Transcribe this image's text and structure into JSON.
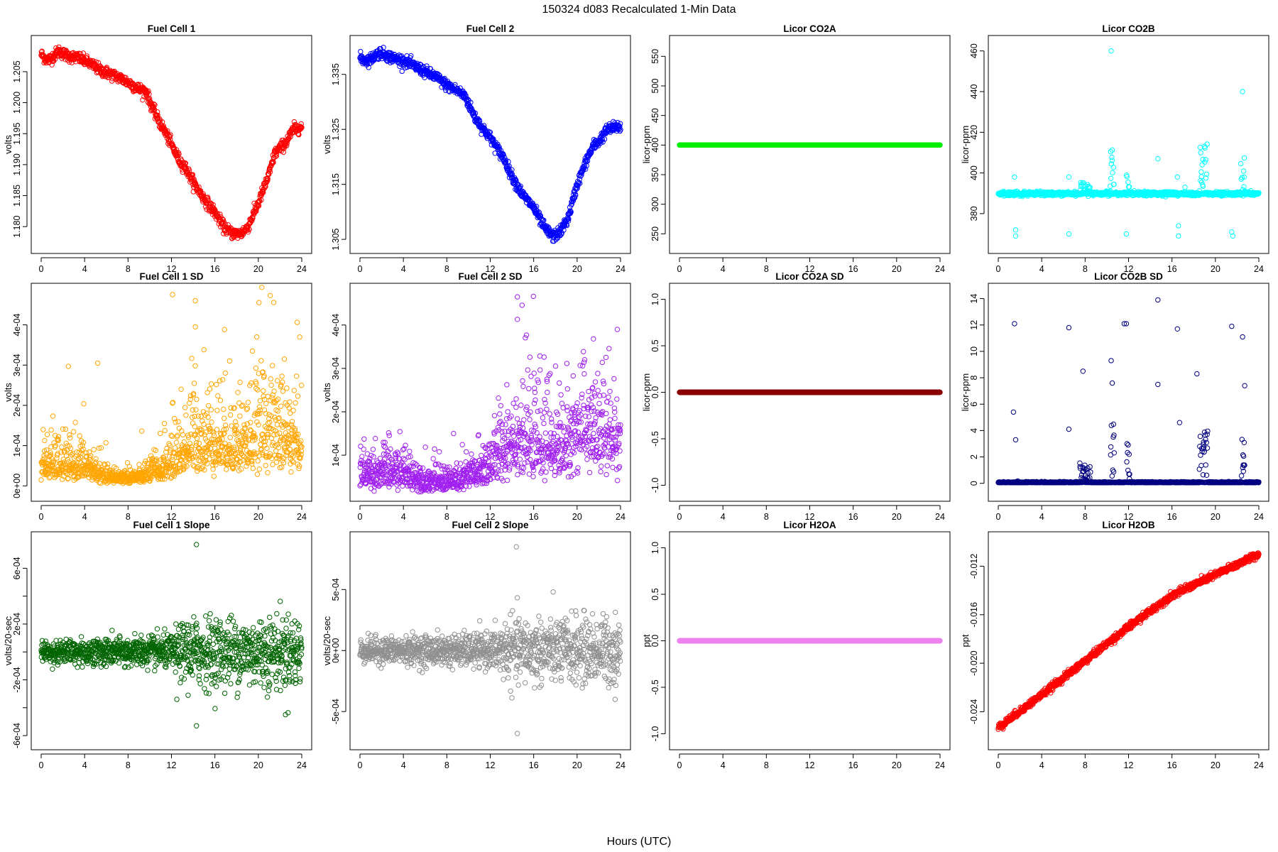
{
  "figure": {
    "title": "150324   d083   Recalculated 1-Min Data",
    "xlabel": "Hours (UTC)"
  },
  "chart_data": [
    {
      "type": "scatter",
      "title": "Fuel Cell 1",
      "ylabel": "volts",
      "color": "#ff0000",
      "xlim": [
        0,
        24
      ],
      "ylim": [
        1.1775,
        1.209
      ],
      "xticks": [
        0,
        4,
        8,
        12,
        16,
        20,
        24
      ],
      "yticks": [
        1.18,
        1.185,
        1.19,
        1.195,
        1.2,
        1.205
      ],
      "ytick_labels": [
        "1.180",
        "1.185",
        "1.190",
        "1.195",
        "1.200",
        "1.205"
      ],
      "gen": {
        "kind": "curve",
        "pts": [
          [
            0,
            1.2078
          ],
          [
            0.6,
            1.2068
          ],
          [
            1.0,
            1.2073
          ],
          [
            1.6,
            1.2083
          ],
          [
            2.5,
            1.2075
          ],
          [
            3.5,
            1.2072
          ],
          [
            4.5,
            1.2063
          ],
          [
            5.5,
            1.2052
          ],
          [
            7,
            1.2042
          ],
          [
            8,
            1.2033
          ],
          [
            9,
            1.2022
          ],
          [
            9.7,
            1.2018
          ],
          [
            10,
            1.2002
          ],
          [
            10.7,
            1.1975
          ],
          [
            11.5,
            1.195
          ],
          [
            12.2,
            1.1925
          ],
          [
            12.8,
            1.1905
          ],
          [
            13.2,
            1.1898
          ],
          [
            14,
            1.1872
          ],
          [
            15,
            1.1845
          ],
          [
            16,
            1.1823
          ],
          [
            16.8,
            1.18
          ],
          [
            17.5,
            1.179
          ],
          [
            18.3,
            1.1788
          ],
          [
            19,
            1.1798
          ],
          [
            20,
            1.1838
          ],
          [
            21,
            1.1885
          ],
          [
            21.5,
            1.1918
          ],
          [
            22.5,
            1.1935
          ],
          [
            23.3,
            1.1958
          ],
          [
            23.8,
            1.196
          ]
        ],
        "noise": 0.00045,
        "n": 900
      }
    },
    {
      "type": "scatter",
      "title": "Fuel Cell 2",
      "ylabel": "volts",
      "color": "#0000ff",
      "xlim": [
        0,
        24
      ],
      "ylim": [
        1.3045,
        1.34
      ],
      "xticks": [
        0,
        4,
        8,
        12,
        16,
        20,
        24
      ],
      "yticks": [
        1.305,
        1.315,
        1.325,
        1.335
      ],
      "ytick_labels": [
        "1.305",
        "1.315",
        "1.325",
        "1.335"
      ],
      "gen": {
        "kind": "curve",
        "pts": [
          [
            0,
            1.338
          ],
          [
            0.5,
            1.3375
          ],
          [
            1.0,
            1.3378
          ],
          [
            1.8,
            1.339
          ],
          [
            3,
            1.338
          ],
          [
            4,
            1.3375
          ],
          [
            5,
            1.3365
          ],
          [
            6,
            1.3355
          ],
          [
            7,
            1.3345
          ],
          [
            8,
            1.333
          ],
          [
            9,
            1.332
          ],
          [
            9.7,
            1.331
          ],
          [
            10.5,
            1.3275
          ],
          [
            11.2,
            1.3255
          ],
          [
            12,
            1.3235
          ],
          [
            12.8,
            1.321
          ],
          [
            13.2,
            1.32
          ],
          [
            14,
            1.3165
          ],
          [
            15,
            1.313
          ],
          [
            16,
            1.3108
          ],
          [
            17,
            1.307
          ],
          [
            17.8,
            1.3055
          ],
          [
            18.5,
            1.3065
          ],
          [
            19.2,
            1.309
          ],
          [
            20,
            1.315
          ],
          [
            21,
            1.32
          ],
          [
            21.5,
            1.322
          ],
          [
            22,
            1.3228
          ],
          [
            22.8,
            1.325
          ],
          [
            23.8,
            1.3255
          ]
        ],
        "noise": 0.0005,
        "n": 900
      }
    },
    {
      "type": "scatter",
      "title": "Licor CO2A",
      "ylabel": "licor-ppm",
      "color": "#00ee00",
      "xlim": [
        0,
        24
      ],
      "ylim": [
        236,
        566
      ],
      "xticks": [
        0,
        4,
        8,
        12,
        16,
        20,
        24
      ],
      "yticks": [
        250,
        300,
        350,
        400,
        450,
        500,
        550
      ],
      "ytick_labels": [
        "250",
        "300",
        "350",
        "400",
        "450",
        "500",
        "550"
      ],
      "gen": {
        "kind": "constant",
        "value": 400,
        "n": 1440
      }
    },
    {
      "type": "scatter",
      "title": "Licor CO2B",
      "ylabel": "licor-ppm",
      "color": "#00ffff",
      "xlim": [
        0,
        24
      ],
      "ylim": [
        366,
        462
      ],
      "xticks": [
        0,
        4,
        8,
        12,
        16,
        20,
        24
      ],
      "yticks": [
        380,
        400,
        420,
        440,
        460
      ],
      "ytick_labels": [
        "380",
        "400",
        "420",
        "440",
        "460"
      ],
      "gen": {
        "kind": "spiky",
        "base": 389.5,
        "noise": 0.4,
        "n": 1100,
        "bursts": [
          [
            10.3,
            10.7,
            22
          ],
          [
            11.8,
            12.1,
            12
          ],
          [
            18.6,
            19.3,
            30
          ],
          [
            22.3,
            22.7,
            20
          ],
          [
            7.5,
            8.5,
            6
          ]
        ],
        "outliers": [
          [
            1.5,
            398
          ],
          [
            1.6,
            372
          ],
          [
            1.6,
            369
          ],
          [
            6.5,
            398
          ],
          [
            6.5,
            370
          ],
          [
            10.4,
            460
          ],
          [
            11.8,
            370
          ],
          [
            16.5,
            398
          ],
          [
            16.6,
            374
          ],
          [
            16.6,
            369
          ],
          [
            17.2,
            393
          ],
          [
            21.5,
            371
          ],
          [
            21.6,
            369
          ],
          [
            22.5,
            440
          ],
          [
            14.7,
            407
          ]
        ]
      }
    },
    {
      "type": "scatter",
      "title": "Fuel Cell 1 SD",
      "ylabel": "volts",
      "color": "#ffa500",
      "xlim": [
        0,
        24
      ],
      "ylim": [
        -1e-05,
        0.000475
      ],
      "xticks": [
        0,
        4,
        8,
        12,
        16,
        20,
        24
      ],
      "yticks": [
        0,
        0.0001,
        0.0002,
        0.0003,
        0.0004
      ],
      "ytick_labels": [
        "0e+00",
        "1e-04",
        "2e-04",
        "3e-04",
        "4e-04"
      ],
      "gen": {
        "kind": "noisy",
        "pts": [
          [
            0,
            5e-05
          ],
          [
            4,
            5e-05
          ],
          [
            6,
            2e-05
          ],
          [
            9,
            2e-05
          ],
          [
            11,
            4e-05
          ],
          [
            12.5,
            7e-05
          ],
          [
            14,
            0.00011
          ],
          [
            16,
            0.00011
          ],
          [
            19,
            0.0001
          ],
          [
            20.5,
            0.00015
          ],
          [
            22,
            0.00012
          ],
          [
            24,
            0.00011
          ]
        ],
        "noise": 0.5,
        "n": 1200,
        "outliers": [
          [
            12.1,
            0.000475
          ],
          [
            14.2,
            0.00046
          ],
          [
            14.2,
            0.000395
          ],
          [
            5.2,
            0.000305
          ],
          [
            22.4,
            0.000315
          ],
          [
            20.5,
            0.00027
          ]
        ]
      }
    },
    {
      "type": "scatter",
      "title": "Fuel Cell 2 SD",
      "ylabel": "volts",
      "color": "#a020f0",
      "xlim": [
        0,
        24
      ],
      "ylim": [
        2e-05,
        0.00047
      ],
      "xticks": [
        0,
        4,
        8,
        12,
        16,
        20,
        24
      ],
      "yticks": [
        0.0001,
        0.0002,
        0.0003,
        0.0004
      ],
      "ytick_labels": [
        "1e-04",
        "2e-04",
        "3e-04",
        "4e-04"
      ],
      "gen": {
        "kind": "noisy",
        "pts": [
          [
            0,
            6e-05
          ],
          [
            4,
            6e-05
          ],
          [
            6,
            4e-05
          ],
          [
            9,
            4e-05
          ],
          [
            11,
            6e-05
          ],
          [
            12.5,
            9e-05
          ],
          [
            14,
            0.00014
          ],
          [
            16,
            0.00013
          ],
          [
            19,
            0.00012
          ],
          [
            20.5,
            0.00017
          ],
          [
            22,
            0.00014
          ],
          [
            24,
            0.00014
          ]
        ],
        "noise": 0.4,
        "n": 1200,
        "outliers": [
          [
            14.5,
            0.000465
          ],
          [
            14.5,
            0.000413
          ],
          [
            21.5,
            0.000368
          ],
          [
            20.7,
            0.00032
          ]
        ]
      }
    },
    {
      "type": "scatter",
      "title": "Licor CO2A SD",
      "ylabel": "licor-ppm",
      "color": "#8b0000",
      "xlim": [
        0,
        24
      ],
      "ylim": [
        -1.05,
        1.05
      ],
      "xticks": [
        0,
        4,
        8,
        12,
        16,
        20,
        24
      ],
      "yticks": [
        -1.0,
        -0.5,
        0.0,
        0.5,
        1.0
      ],
      "ytick_labels": [
        "-1.0",
        "-0.5",
        "0.0",
        "0.5",
        "1.0"
      ],
      "gen": {
        "kind": "constant",
        "value": 0,
        "n": 1440
      }
    },
    {
      "type": "scatter",
      "title": "Licor CO2B SD",
      "ylabel": "licor-ppm",
      "color": "#000080",
      "xlim": [
        0,
        24
      ],
      "ylim": [
        -0.5,
        14.3
      ],
      "xticks": [
        0,
        4,
        8,
        12,
        16,
        20,
        24
      ],
      "yticks": [
        0,
        2,
        4,
        6,
        8,
        10,
        12,
        14
      ],
      "ytick_labels": [
        "0",
        "2",
        "4",
        "6",
        "8",
        "10",
        "12",
        "14"
      ],
      "gen": {
        "kind": "spiky",
        "base": 0.05,
        "noise": 0.03,
        "n": 1100,
        "bursts": [
          [
            10.3,
            10.7,
            5
          ],
          [
            11.8,
            12.1,
            3
          ],
          [
            18.5,
            19.3,
            4
          ],
          [
            22.3,
            22.7,
            3.5
          ],
          [
            7.5,
            8.5,
            1.5
          ]
        ],
        "outliers": [
          [
            1.5,
            12.1
          ],
          [
            1.4,
            5.4
          ],
          [
            1.6,
            3.3
          ],
          [
            6.5,
            11.8
          ],
          [
            6.5,
            4.1
          ],
          [
            10.4,
            9.3
          ],
          [
            10.5,
            7.6
          ],
          [
            11.8,
            12.1
          ],
          [
            11.6,
            12.1
          ],
          [
            14.7,
            13.9
          ],
          [
            14.7,
            7.5
          ],
          [
            16.5,
            11.7
          ],
          [
            16.7,
            4.6
          ],
          [
            18.3,
            8.3
          ],
          [
            21.5,
            11.9
          ],
          [
            22.5,
            11.1
          ],
          [
            22.7,
            7.4
          ],
          [
            7.8,
            8.5
          ]
        ]
      }
    },
    {
      "type": "scatter",
      "title": "Fuel Cell 1 Slope",
      "ylabel": "volts/20-sec",
      "color": "#006400",
      "xlim": [
        0,
        24
      ],
      "ylim": [
        -0.00062,
        0.00078
      ],
      "xticks": [
        0,
        4,
        8,
        12,
        16,
        20,
        24
      ],
      "yticks": [
        -0.0006,
        -0.0004,
        -0.0002,
        0,
        0.0002,
        0.0004,
        0.0006
      ],
      "ytick_labels": [
        "-6e-04",
        "",
        "-2e-04",
        "",
        "2e-04",
        "",
        "6e-04"
      ],
      "gen": {
        "kind": "noisy",
        "pts": [
          [
            0,
            0
          ],
          [
            24,
            0
          ]
        ],
        "noise_abs": [
          [
            0,
            4e-05
          ],
          [
            12,
            6e-05
          ],
          [
            13.5,
            0.00012
          ],
          [
            24,
            0.00013
          ]
        ],
        "n": 1200,
        "outliers": [
          [
            14.3,
            0.00077
          ],
          [
            14.3,
            -0.00053
          ],
          [
            22.5,
            -0.00045
          ],
          [
            12.5,
            -0.00034
          ]
        ]
      }
    },
    {
      "type": "scatter",
      "title": "Fuel Cell 2 Slope",
      "ylabel": "volts/20-sec",
      "color": "#909090",
      "xlim": [
        0,
        24
      ],
      "ylim": [
        -0.00072,
        0.00088
      ],
      "xticks": [
        0,
        4,
        8,
        12,
        16,
        20,
        24
      ],
      "yticks": [
        -0.0005,
        0,
        0.0005
      ],
      "ytick_labels": [
        "-5e-04",
        "0e+00",
        "5e-04"
      ],
      "gen": {
        "kind": "noisy",
        "pts": [
          [
            0,
            0
          ],
          [
            24,
            0
          ]
        ],
        "noise_abs": [
          [
            0,
            5e-05
          ],
          [
            12,
            7e-05
          ],
          [
            13.5,
            0.00013
          ],
          [
            24,
            0.00014
          ]
        ],
        "n": 1200,
        "outliers": [
          [
            14.4,
            0.00085
          ],
          [
            14.5,
            -0.00068
          ],
          [
            23.5,
            -0.0004
          ]
        ]
      }
    },
    {
      "type": "scatter",
      "title": "Licor H2OA",
      "ylabel": "ppt",
      "color": "#ee82ee",
      "xlim": [
        0,
        24
      ],
      "ylim": [
        -1.05,
        1.05
      ],
      "xticks": [
        0,
        4,
        8,
        12,
        16,
        20,
        24
      ],
      "yticks": [
        -1.0,
        -0.5,
        0.0,
        0.5,
        1.0
      ],
      "ytick_labels": [
        "-1.0",
        "-0.5",
        "0.0",
        "0.5",
        "1.0"
      ],
      "gen": {
        "kind": "constant",
        "value": 0,
        "n": 1440
      }
    },
    {
      "type": "scatter",
      "title": "Licor H2OB",
      "ylabel": "ppt",
      "color": "#ff0000",
      "xlim": [
        0,
        24
      ],
      "ylim": [
        -0.0262,
        -0.0101
      ],
      "xticks": [
        0,
        4,
        8,
        12,
        16,
        20,
        24
      ],
      "yticks": [
        -0.024,
        -0.02,
        -0.016,
        -0.012
      ],
      "ytick_labels": [
        "-0.024",
        "-0.020",
        "-0.016",
        "-0.012"
      ],
      "gen": {
        "kind": "curve",
        "pts": [
          [
            0,
            -0.0253
          ],
          [
            4,
            -0.0226
          ],
          [
            8,
            -0.0198
          ],
          [
            12,
            -0.017
          ],
          [
            16,
            -0.0144
          ],
          [
            20,
            -0.0127
          ],
          [
            24,
            -0.011
          ]
        ],
        "noise": 0.00014,
        "n": 1100
      }
    }
  ]
}
